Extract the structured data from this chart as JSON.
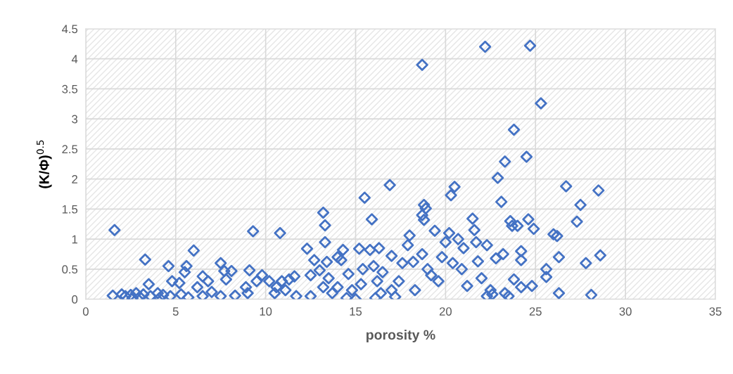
{
  "chart_data": {
    "type": "scatter",
    "xlabel": "porosity %",
    "ylabel": "(K/Φ)$^{0.5}$",
    "xlim": [
      0,
      35
    ],
    "xticks": [
      0,
      5,
      10,
      15,
      20,
      25,
      30,
      35
    ],
    "ylim": [
      0,
      4.5
    ],
    "yticks": [
      0,
      0.5,
      1,
      1.5,
      2,
      2.5,
      3,
      3.5,
      4,
      4.5
    ],
    "grid": true,
    "marker": "diamond",
    "series": [
      {
        "color": "#4472c4",
        "x": [
          1.6,
          1.5,
          2,
          2.2,
          2.5,
          2.8,
          3,
          3.3,
          3.5,
          3.6,
          4,
          4.3,
          4.6,
          4.8,
          4.7,
          5.2,
          5.5,
          5.6,
          5.3,
          6,
          6.2,
          6.5,
          6.8,
          7,
          7.5,
          7.7,
          7.8,
          8.1,
          7.5,
          8.3,
          8.9,
          9,
          9.1,
          9.3,
          9.5,
          9.8,
          10.2,
          10.6,
          10.8,
          10.9,
          11.1,
          11.3,
          11.6,
          11.7,
          12.3,
          12.5,
          12.7,
          13,
          13.2,
          13.3,
          13.3,
          13.4,
          13.5,
          13.2,
          13.7,
          14,
          14.2,
          14.3,
          14.5,
          14.6,
          14.8,
          15,
          15.2,
          15.4,
          15.5,
          15.8,
          15.9,
          16,
          16.1,
          16.3,
          16.4,
          16.5,
          16.9,
          17,
          17.2,
          17.4,
          17.6,
          17.9,
          18,
          18.2,
          18.3,
          18.7,
          18.7,
          18.8,
          18.9,
          18.8,
          18.7,
          19,
          19.4,
          19.6,
          19.8,
          20,
          20.2,
          20.3,
          20.5,
          20.7,
          20.9,
          21.2,
          21.5,
          21.6,
          21.7,
          21.8,
          22,
          22.2,
          22.3,
          22.3,
          22.6,
          22.8,
          22.9,
          23.1,
          23.2,
          23.3,
          23.6,
          23.7,
          23.8,
          23.8,
          23.5,
          24,
          24.2,
          24.2,
          24.2,
          24.5,
          24.6,
          24.7,
          24.8,
          24.9,
          25.3,
          25.6,
          25.6,
          26,
          26.2,
          26.3,
          26.3,
          26.7,
          27.3,
          27.5,
          27.8,
          28.1,
          28.5,
          28.6,
          2.6,
          3.2,
          4.1,
          5.7,
          6.5,
          10.5,
          12.5,
          14,
          15.3,
          16.2,
          17,
          19.2,
          20.4,
          21,
          22.5,
          23.3
        ],
        "values": [
          1.15,
          0.06,
          0.08,
          0.05,
          0.07,
          0.1,
          0.04,
          0.66,
          0.25,
          0.05,
          0.1,
          0.07,
          0.55,
          0.3,
          0.05,
          0.27,
          0.45,
          0.55,
          0.08,
          0.81,
          0.2,
          0.38,
          0.3,
          0.12,
          0.6,
          0.47,
          0.33,
          0.47,
          0.05,
          0.06,
          0.2,
          0.1,
          0.48,
          1.13,
          0.3,
          0.4,
          0.3,
          0.2,
          1.1,
          0.3,
          0.15,
          0.33,
          0.38,
          0.05,
          0.84,
          0.4,
          0.65,
          0.48,
          1.44,
          1.23,
          0.95,
          0.62,
          0.35,
          0.2,
          0.1,
          0.7,
          0.65,
          0.82,
          0.02,
          0.42,
          0.15,
          0.0,
          0.84,
          0.5,
          1.69,
          0.82,
          1.33,
          0.55,
          0.02,
          0.85,
          0.1,
          0.45,
          1.9,
          0.72,
          0.04,
          0.3,
          0.6,
          0.9,
          1.06,
          0.62,
          0.15,
          3.9,
          1.4,
          1.57,
          1.51,
          1.32,
          0.75,
          0.5,
          1.14,
          0.3,
          0.7,
          0.95,
          1.1,
          1.73,
          1.87,
          1.0,
          0.5,
          0.22,
          1.34,
          1.15,
          0.95,
          0.63,
          0.35,
          4.2,
          0.9,
          0.05,
          0.08,
          0.68,
          2.02,
          1.62,
          0.75,
          2.29,
          1.3,
          1.22,
          2.82,
          0.33,
          0.05,
          1.22,
          0.65,
          0.8,
          0.2,
          2.37,
          1.33,
          4.22,
          0.22,
          1.17,
          3.26,
          0.5,
          0.37,
          1.08,
          1.05,
          0.7,
          0.1,
          1.88,
          1.29,
          1.57,
          0.6,
          0.07,
          1.81,
          0.73,
          0.02,
          0.08,
          0.02,
          0.03,
          0.05,
          0.1,
          0.05,
          0.2,
          0.25,
          0.3,
          0.15,
          0.4,
          0.6,
          0.85,
          0.15,
          0.1
        ]
      }
    ]
  }
}
